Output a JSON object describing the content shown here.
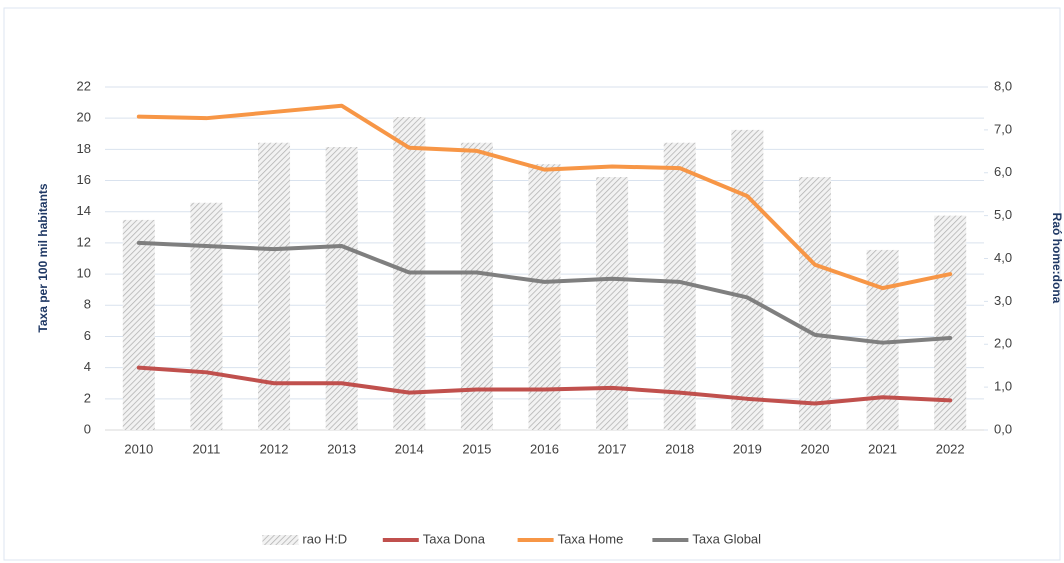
{
  "chart_data": {
    "type": "combo",
    "categories": [
      "2010",
      "2011",
      "2012",
      "2013",
      "2014",
      "2015",
      "2016",
      "2017",
      "2018",
      "2019",
      "2020",
      "2021",
      "2022"
    ],
    "series": [
      {
        "name": "rao H:D",
        "type": "bar",
        "axis": "y2",
        "color": "#bfbfbf",
        "values": [
          4.9,
          5.3,
          6.7,
          6.6,
          7.3,
          6.7,
          6.2,
          5.9,
          6.7,
          7.0,
          5.9,
          4.2,
          5.0
        ]
      },
      {
        "name": "Taxa Dona",
        "type": "line",
        "color": "#c0504d",
        "values": [
          4.0,
          3.7,
          3.0,
          3.0,
          2.4,
          2.6,
          2.6,
          2.7,
          2.4,
          2.0,
          1.7,
          2.1,
          1.9
        ]
      },
      {
        "name": "Taxa Home",
        "type": "line",
        "color": "#f79646",
        "values": [
          20.1,
          20.0,
          20.4,
          20.8,
          18.1,
          17.9,
          16.7,
          16.9,
          16.8,
          15.0,
          10.6,
          9.1,
          10.0
        ]
      },
      {
        "name": "Taxa Global",
        "type": "line",
        "color": "#7f7f7f",
        "values": [
          12.0,
          11.8,
          11.6,
          11.8,
          10.1,
          10.1,
          9.5,
          9.7,
          9.5,
          8.5,
          6.1,
          5.6,
          5.9
        ]
      }
    ],
    "ylabel": "Taxa per 100 mil habitants",
    "y2label": "Raó home:dona",
    "ylim": [
      0,
      22
    ],
    "yticks": [
      0,
      2,
      4,
      6,
      8,
      10,
      12,
      14,
      16,
      18,
      20,
      22
    ],
    "y2lim": [
      0,
      8
    ],
    "y2ticks": [
      {
        "value": 0,
        "label": "0,0"
      },
      {
        "value": 1,
        "label": "1,0"
      },
      {
        "value": 2,
        "label": "2,0"
      },
      {
        "value": 3,
        "label": "3,0"
      },
      {
        "value": 4,
        "label": "4,0"
      },
      {
        "value": 5,
        "label": "5,0"
      },
      {
        "value": 6,
        "label": "6,0"
      },
      {
        "value": 7,
        "label": "7,0"
      },
      {
        "value": 8,
        "label": "8,0"
      }
    ],
    "grid": true,
    "legend": "bottom"
  }
}
